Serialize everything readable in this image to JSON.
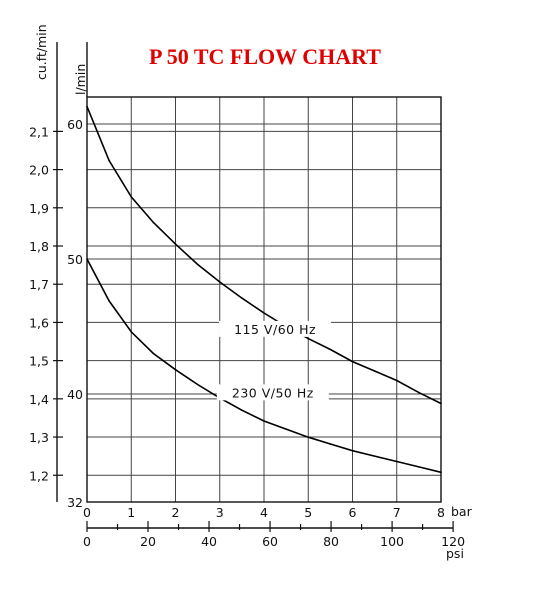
{
  "chart_data": {
    "type": "line",
    "title": "P 50 TC FLOW CHART",
    "x_primary": {
      "unit": "bar",
      "range": [
        0,
        8
      ],
      "ticks": [
        "0",
        "1",
        "2",
        "3",
        "4",
        "5",
        "6",
        "7",
        "8"
      ]
    },
    "x_secondary": {
      "unit": "psi",
      "range": [
        0,
        120
      ],
      "ticks": [
        "0",
        "20",
        "40",
        "60",
        "80",
        "100",
        "120"
      ]
    },
    "y_primary": {
      "unit": "l/min",
      "range": [
        32,
        62
      ],
      "ticks": [
        "32",
        "40",
        "50",
        "60"
      ]
    },
    "y_secondary": {
      "unit": "cu.ft/min",
      "range": [
        1.13,
        2.19
      ],
      "ticks": [
        "1,2",
        "1,3",
        "1,4",
        "1,5",
        "1,6",
        "1,7",
        "1,8",
        "1,9",
        "2,0",
        "2,1"
      ]
    },
    "grid": true,
    "series": [
      {
        "name": "115 V/60 Hz",
        "x": [
          0,
          0.5,
          1,
          1.5,
          2,
          2.5,
          3,
          3.5,
          4,
          4.5,
          5,
          5.5,
          6,
          6.5,
          7,
          7.5,
          8
        ],
        "y": [
          61.3,
          57.3,
          54.6,
          52.7,
          51.1,
          49.6,
          48.3,
          47.1,
          46.0,
          45.0,
          44.1,
          43.3,
          42.4,
          41.7,
          41.0,
          40.1,
          39.3
        ]
      },
      {
        "name": "230 V/50 Hz",
        "x": [
          0,
          0.5,
          1,
          1.5,
          2,
          2.5,
          3,
          3.5,
          4,
          4.5,
          5,
          5.5,
          6,
          6.5,
          7,
          7.5,
          8
        ],
        "y": [
          50.0,
          46.9,
          44.6,
          43.0,
          41.8,
          40.7,
          39.7,
          38.8,
          38.0,
          37.4,
          36.8,
          36.3,
          35.8,
          35.4,
          35.0,
          34.6,
          34.2
        ]
      }
    ]
  }
}
